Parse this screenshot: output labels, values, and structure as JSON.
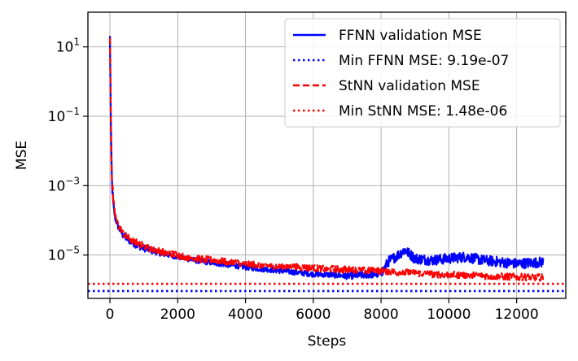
{
  "chart_data": {
    "type": "line",
    "title": "",
    "xlabel": "Steps",
    "ylabel": "MSE",
    "xlim": [
      -650,
      13450
    ],
    "ylim_log10": [
      -6.25,
      2.0
    ],
    "yscale": "log",
    "grid": true,
    "legend_position": "top-right",
    "x_ticks": [
      0,
      2000,
      4000,
      6000,
      8000,
      10000,
      12000
    ],
    "x_tick_labels": [
      "0",
      "2000",
      "4000",
      "6000",
      "8000",
      "10000",
      "12000"
    ],
    "y_ticks_log10": [
      1,
      -1,
      -3,
      -5
    ],
    "y_tick_bases": [
      "10",
      "10",
      "10",
      "10"
    ],
    "y_tick_exponents": [
      "1",
      "−1",
      "−3",
      "−5"
    ],
    "colors": {
      "ffnn": "#0000ff",
      "stnn": "#ff0000",
      "grid": "#b0b0b0"
    },
    "series": [
      {
        "name": "FFNN validation MSE",
        "style": "solid",
        "color": "#0000ff",
        "x": [
          0,
          30,
          60,
          100,
          150,
          250,
          400,
          600,
          800,
          1000,
          1500,
          2000,
          2500,
          3000,
          3500,
          4000,
          4500,
          5000,
          5500,
          6000,
          6500,
          7000,
          7500,
          8000,
          8200,
          8500,
          8700,
          9000,
          9500,
          10000,
          10500,
          11000,
          11500,
          12000,
          12500,
          12800
        ],
        "log10_y": [
          1.3,
          -1.6,
          -2.9,
          -3.6,
          -3.9,
          -4.2,
          -4.45,
          -4.6,
          -4.72,
          -4.8,
          -4.95,
          -5.05,
          -5.15,
          -5.22,
          -5.28,
          -5.35,
          -5.4,
          -5.45,
          -5.5,
          -5.55,
          -5.57,
          -5.6,
          -5.58,
          -5.55,
          -5.2,
          -5.0,
          -4.85,
          -5.1,
          -5.15,
          -5.1,
          -5.05,
          -5.15,
          -5.2,
          -5.25,
          -5.22,
          -5.2
        ],
        "noise_log10": [
          0.05,
          0.3,
          0.2,
          0.15,
          0.12,
          0.1,
          0.1,
          0.1,
          0.1,
          0.1,
          0.08,
          0.08,
          0.08,
          0.08,
          0.08,
          0.08,
          0.08,
          0.08,
          0.08,
          0.08,
          0.08,
          0.1,
          0.1,
          0.1,
          0.15,
          0.15,
          0.15,
          0.15,
          0.15,
          0.15,
          0.15,
          0.15,
          0.15,
          0.15,
          0.15,
          0.15
        ]
      },
      {
        "name": "Min FFNN MSE: 9.19e-07",
        "style": "dotted",
        "color": "#0000ff",
        "value": 9.19e-07
      },
      {
        "name": "StNN validation MSE",
        "style": "dashed",
        "color": "#ff0000",
        "x": [
          0,
          30,
          60,
          100,
          150,
          250,
          400,
          600,
          800,
          1000,
          1500,
          2000,
          2500,
          3000,
          3500,
          4000,
          4500,
          5000,
          5500,
          6000,
          6500,
          7000,
          7500,
          8000,
          8500,
          9000,
          9500,
          10000,
          10500,
          11000,
          11500,
          12000,
          12500,
          12800
        ],
        "log10_y": [
          1.3,
          -1.5,
          -2.8,
          -3.5,
          -3.85,
          -4.15,
          -4.4,
          -4.55,
          -4.65,
          -4.75,
          -4.9,
          -5.0,
          -5.1,
          -5.15,
          -5.2,
          -5.25,
          -5.3,
          -5.32,
          -5.35,
          -5.38,
          -5.4,
          -5.42,
          -5.45,
          -5.45,
          -5.5,
          -5.52,
          -5.55,
          -5.57,
          -5.58,
          -5.6,
          -5.62,
          -5.63,
          -5.64,
          -5.65
        ],
        "noise_log10": [
          0.05,
          0.3,
          0.2,
          0.15,
          0.12,
          0.1,
          0.1,
          0.1,
          0.1,
          0.1,
          0.1,
          0.1,
          0.1,
          0.1,
          0.1,
          0.1,
          0.1,
          0.1,
          0.1,
          0.1,
          0.1,
          0.1,
          0.1,
          0.1,
          0.1,
          0.1,
          0.1,
          0.1,
          0.1,
          0.1,
          0.1,
          0.1,
          0.1,
          0.1
        ]
      },
      {
        "name": "Min StNN MSE: 1.48e-06",
        "style": "dotted",
        "color": "#ff0000",
        "value": 1.48e-06
      }
    ]
  }
}
